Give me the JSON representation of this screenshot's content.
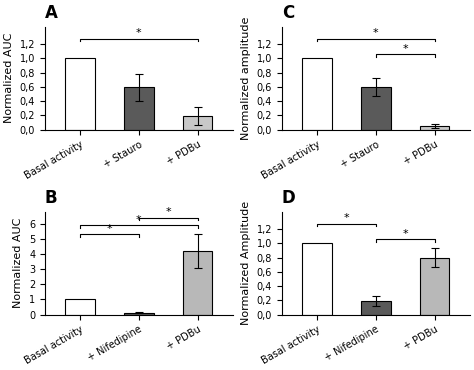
{
  "chart_data": [
    {
      "type": "bar",
      "title": "A",
      "ylabel": "Normalized AUC",
      "categories": [
        "Basal activity",
        "+ Stauro",
        "+ PDBu"
      ],
      "values": [
        1.0,
        0.595,
        0.19
      ],
      "errors": [
        0.0,
        0.19,
        0.12
      ],
      "colors": [
        "#ffffff",
        "#5a5a5a",
        "#c8c8c8"
      ],
      "ylim": [
        0,
        1.45
      ],
      "yticks": [
        {
          "value": 0.0,
          "label": "0,0"
        },
        {
          "value": 0.2,
          "label": "0,2"
        },
        {
          "value": 0.4,
          "label": "0,4"
        },
        {
          "value": 0.6,
          "label": "0,6"
        },
        {
          "value": 0.8,
          "label": "0,8"
        },
        {
          "value": 1.0,
          "label": "1,0"
        },
        {
          "value": 1.2,
          "label": "1,2"
        }
      ],
      "brackets": [
        {
          "from": "Basal activity",
          "to": "+ PDBu",
          "y": 1.28,
          "label": "*"
        }
      ]
    },
    {
      "type": "bar",
      "title": "C",
      "ylabel": "Normalized amplitude",
      "categories": [
        "Basal activity",
        "+ Stauro",
        "+ PDBu"
      ],
      "values": [
        1.0,
        0.595,
        0.05
      ],
      "errors": [
        0.0,
        0.13,
        0.03
      ],
      "colors": [
        "#ffffff",
        "#5a5a5a",
        "#c8c8c8"
      ],
      "ylim": [
        0,
        1.45
      ],
      "yticks": [
        {
          "value": 0.0,
          "label": "0,0"
        },
        {
          "value": 0.2,
          "label": "0,2"
        },
        {
          "value": 0.4,
          "label": "0,4"
        },
        {
          "value": 0.6,
          "label": "0,6"
        },
        {
          "value": 0.8,
          "label": "0,8"
        },
        {
          "value": 1.0,
          "label": "1,0"
        },
        {
          "value": 1.2,
          "label": "1,2"
        }
      ],
      "brackets": [
        {
          "from": "Basal activity",
          "to": "+ PDBu",
          "y": 1.28,
          "label": "*"
        },
        {
          "from": "+ Stauro",
          "to": "+ PDBu",
          "y": 1.06,
          "label": "*"
        }
      ]
    },
    {
      "type": "bar",
      "title": "B",
      "ylabel": "Normalized AUC",
      "categories": [
        "Basal activity",
        "+ Nifedipine",
        "+ PDBu"
      ],
      "values": [
        1.0,
        0.13,
        4.2
      ],
      "errors": [
        0.0,
        0.05,
        1.1
      ],
      "colors": [
        "#ffffff",
        "#5a5a5a",
        "#b8b8b8"
      ],
      "ylim": [
        0,
        6.8
      ],
      "yticks": [
        0,
        1,
        2,
        3,
        4,
        5,
        6
      ],
      "brackets": [
        {
          "from": "Basal activity",
          "to": "+ Nifedipine",
          "y": 5.3,
          "label": "*"
        },
        {
          "from": "Basal activity",
          "to": "+ PDBu",
          "y": 5.9,
          "label": "*"
        },
        {
          "from": "+ Nifedipine",
          "to": "+ PDBu",
          "y": 6.4,
          "label": "*"
        }
      ]
    },
    {
      "type": "bar",
      "title": "D",
      "ylabel": "Normalized Amplitude",
      "categories": [
        "Basal activity",
        "+ Nifedipine",
        "+ PDBu"
      ],
      "values": [
        1.0,
        0.19,
        0.8
      ],
      "errors": [
        0.0,
        0.07,
        0.13
      ],
      "colors": [
        "#ffffff",
        "#5a5a5a",
        "#b8b8b8"
      ],
      "ylim": [
        0,
        1.45
      ],
      "yticks": [
        {
          "value": 0.0,
          "label": "0,0"
        },
        {
          "value": 0.2,
          "label": "0,2"
        },
        {
          "value": 0.4,
          "label": "0,4"
        },
        {
          "value": 0.6,
          "label": "0,6"
        },
        {
          "value": 0.8,
          "label": "0,8"
        },
        {
          "value": 1.0,
          "label": "1,0"
        },
        {
          "value": 1.2,
          "label": "1,2"
        }
      ],
      "brackets": [
        {
          "from": "Basal activity",
          "to": "+ Nifedipine",
          "y": 1.28,
          "label": "*"
        },
        {
          "from": "+ Nifedipine",
          "to": "+ PDBu",
          "y": 1.06,
          "label": "*"
        }
      ]
    }
  ]
}
